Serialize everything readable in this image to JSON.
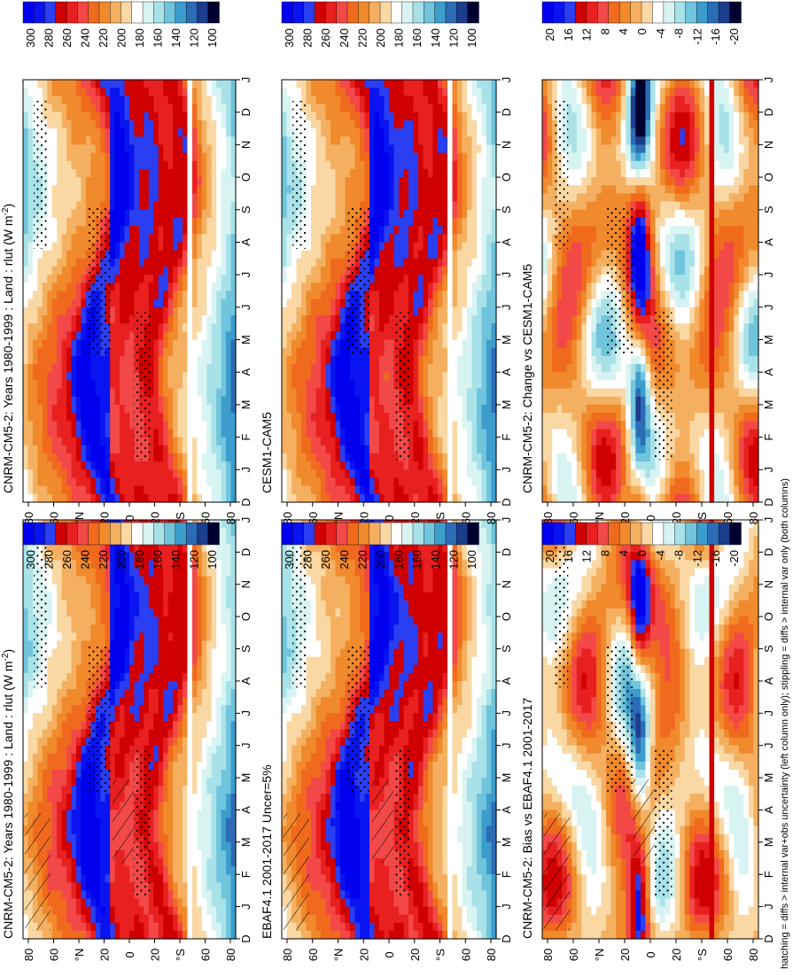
{
  "chart_data": {
    "type": "heatmap",
    "orientation_note_visible": true,
    "footnote": "hatching = diffs > internal var+obs uncertainty (left column only); stippling = diffs > internal var only (both columns)",
    "months": [
      "D",
      "J",
      "F",
      "M",
      "A",
      "M",
      "J",
      "J",
      "A",
      "S",
      "O",
      "N",
      "D",
      "J"
    ],
    "lat_ticks": [
      "80",
      "60",
      "°N",
      "20",
      "0",
      "20",
      "°S",
      "60",
      "80"
    ],
    "panels": [
      {
        "id": "top-left",
        "title": "CNRM-CM5-2: Years 1980-1999 : Land : rlut (W m",
        "title_sup": "-2",
        "title_tail": ")",
        "kind": "abs",
        "hatch": true
      },
      {
        "id": "top-right",
        "title": "CNRM-CM5-2: Years 1980-1999 : Land : rlut (W m",
        "title_sup": "-2",
        "title_tail": ")",
        "kind": "abs",
        "hatch": false
      },
      {
        "id": "mid-left",
        "title": "EBAF4.1 2001-2017 Uncer=5%",
        "title_sup": "",
        "title_tail": "",
        "kind": "abs",
        "hatch": true
      },
      {
        "id": "mid-right",
        "title": "CESM1-CAM5",
        "title_sup": "",
        "title_tail": "",
        "kind": "abs",
        "hatch": false
      },
      {
        "id": "bot-left",
        "title": "CNRM-CM5-2: Bias vs EBAF4.1 2001-2017",
        "title_sup": "",
        "title_tail": "",
        "kind": "diff",
        "hatch": true
      },
      {
        "id": "bot-right",
        "title": "CNRM-CM5-2: Change vs CESM1-CAM5",
        "title_sup": "",
        "title_tail": "",
        "kind": "diff",
        "hatch": false
      }
    ],
    "colorbar_abs": {
      "ticks": [
        "300",
        "280",
        "260",
        "240",
        "220",
        "200",
        "180",
        "160",
        "140",
        "120",
        "100"
      ],
      "colors": [
        "#0000ee",
        "#0a14f0",
        "#2a3ef2",
        "#d00000",
        "#e82020",
        "#f24848",
        "#f06a1e",
        "#f08a2c",
        "#f4b060",
        "#fad8a4",
        "#ffffff",
        "#d8f4f2",
        "#a8e2e8",
        "#70c4dc",
        "#3c9ccc",
        "#2c6cb4",
        "#1c3c8c",
        "#000030"
      ]
    },
    "colorbar_diff": {
      "ticks": [
        "20",
        "16",
        "12",
        "8",
        "4",
        "0",
        "-4",
        "-8",
        "-12",
        "-16",
        "-20"
      ],
      "colors": [
        "#0000ee",
        "#0a14f0",
        "#2a3ef2",
        "#d00000",
        "#e82020",
        "#f24848",
        "#f06a1e",
        "#f08a2c",
        "#f4b060",
        "#fad8a4",
        "#ffffff",
        "#d8f4f2",
        "#a8e2e8",
        "#70c4dc",
        "#3c9ccc",
        "#2c6cb4",
        "#1c3c8c",
        "#000030"
      ]
    }
  }
}
